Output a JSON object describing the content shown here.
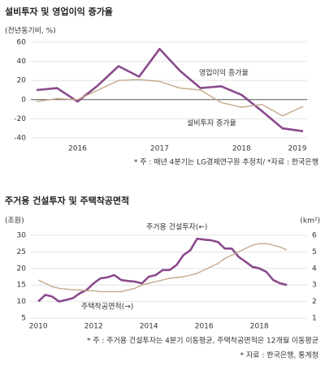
{
  "chart_data": [
    {
      "type": "line",
      "title": "설비투자 및 영업이익 증가율",
      "y_label": "(전년동기비, %)",
      "categories": [
        null,
        null,
        "2016",
        null,
        null,
        null,
        "2017",
        null,
        null,
        null,
        "2018",
        null,
        null,
        "2019"
      ],
      "series": [
        {
          "name": "영업이익 증가율",
          "color": "#8a4a8c",
          "values": [
            10,
            12,
            -2,
            15,
            35,
            24,
            53,
            30,
            12,
            14,
            5,
            -12,
            -30,
            -33
          ]
        },
        {
          "name": "설비투자 증가율",
          "color": "#c4a98a",
          "values": [
            -2,
            1,
            0,
            10,
            20,
            21,
            19,
            12,
            10,
            -3,
            -8,
            -5,
            -17,
            -7
          ]
        }
      ],
      "ylim": [
        -40,
        60
      ],
      "yticks": [
        -40,
        -20,
        0,
        20,
        40,
        60
      ],
      "grid": true,
      "notes": [
        "* 주 : 매년 4분기는 LG경제연구원 추정치/ *자료 : 한국은행"
      ]
    },
    {
      "type": "line",
      "title": "주거용 건설투자 및 주택착공면적",
      "y_label": "(조원)",
      "y2_label": "(km²)",
      "x": [
        2010,
        2010.25,
        2010.5,
        2010.75,
        2011,
        2011.25,
        2011.5,
        2011.75,
        2012,
        2012.25,
        2012.5,
        2012.75,
        2013,
        2013.25,
        2013.5,
        2013.75,
        2014,
        2014.25,
        2014.5,
        2014.75,
        2015,
        2015.25,
        2015.5,
        2015.75,
        2016,
        2016.25,
        2016.5,
        2016.75,
        2017,
        2017.25,
        2017.5,
        2017.75,
        2018,
        2018.25,
        2018.5,
        2018.75,
        2019
      ],
      "series": [
        {
          "name": "주거용 건설투자(←)",
          "color": "#8a4a8c",
          "values": [
            10,
            12,
            11.5,
            10,
            10.5,
            11,
            12.5,
            13.5,
            15.5,
            17,
            17.3,
            18,
            16.5,
            16.2,
            16,
            15.5,
            17.5,
            18,
            19.5,
            19.5,
            21,
            24,
            25.5,
            29,
            28.7,
            28.5,
            28,
            26,
            26,
            23.5,
            22,
            20.5,
            20,
            19,
            16.5,
            15.5,
            15
          ]
        },
        {
          "name": "주택착공면적(→)",
          "color": "#c4a98a",
          "axis": "y2",
          "values": [
            3.3,
            3.1,
            2.9,
            2.8,
            2.75,
            2.7,
            2.7,
            2.65,
            2.65,
            2.6,
            2.6,
            2.6,
            2.6,
            2.7,
            2.8,
            3.0,
            3.1,
            3.2,
            3.3,
            3.4,
            3.45,
            3.5,
            3.6,
            3.7,
            3.9,
            4.1,
            4.3,
            4.6,
            4.8,
            5.0,
            5.2,
            5.4,
            5.5,
            5.5,
            5.4,
            5.3,
            5.1
          ]
        }
      ],
      "xlim": [
        2009.73,
        2019.73
      ],
      "xticks": [
        2010,
        2012,
        2014,
        2016,
        2018
      ],
      "ylim": [
        5,
        30
      ],
      "yticks": [
        5,
        10,
        15,
        20,
        25,
        30
      ],
      "y2lim": [
        1,
        6
      ],
      "y2ticks": [
        1,
        2,
        3,
        4,
        5,
        6
      ],
      "grid": true,
      "notes": [
        "* 주 : 주거용 건설투자는 4분기 이동평균, 주택착공면적은 12개월 이동평균",
        "* 자료 : 한국은행, 통계청"
      ]
    }
  ]
}
